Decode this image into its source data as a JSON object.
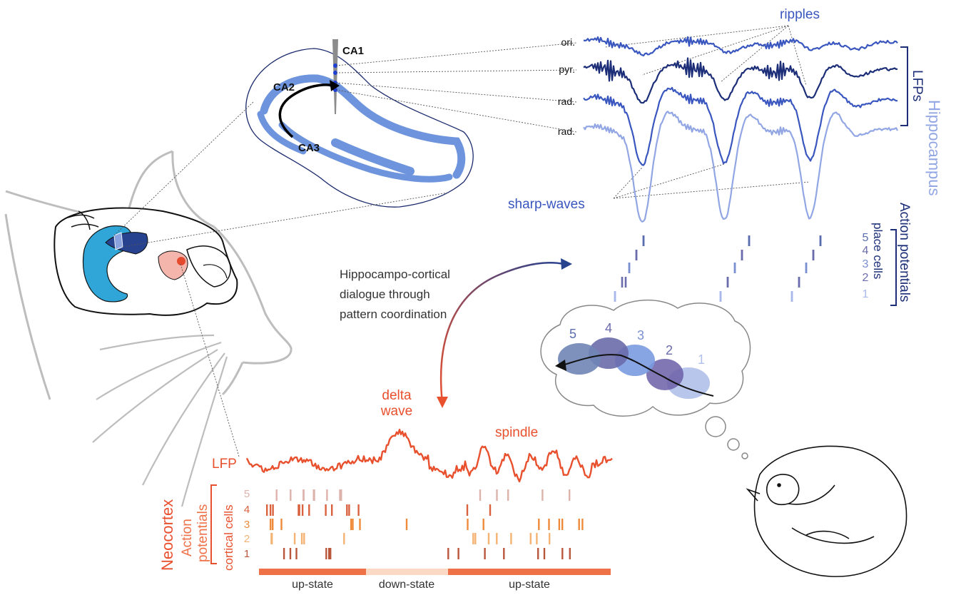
{
  "hippocampus_panel": {
    "region_labels": {
      "ca1": "CA1",
      "ca2": "CA2",
      "ca3": "CA3"
    },
    "layer_labels": [
      "ori.",
      "pyr.",
      "rad.",
      "rad."
    ],
    "ripples_label": "ripples",
    "sharp_waves_label": "sharp-waves",
    "lfps_label": "LFPs",
    "hippocampus_label": "Hippocampus",
    "action_potentials_label": "Action potentials",
    "place_cells_label": "place cells",
    "cell_numbers": [
      "5",
      "4",
      "3",
      "2",
      "1"
    ],
    "colors": {
      "hippo_fill": "#6d94dc",
      "hippo_dark": "#1c2e78",
      "hippo_light": "#92a6e4",
      "spike": "#6b6cab"
    }
  },
  "dialogue_label": [
    "Hippocampo-cortical",
    "dialogue through",
    "pattern coordination"
  ],
  "dream_bubble": {
    "place_numbers": [
      "5",
      "4",
      "3",
      "2",
      "1"
    ]
  },
  "neocortex_panel": {
    "delta_wave_label": [
      "delta",
      "wave"
    ],
    "spindle_label": "spindle",
    "lfp_label": "LFP",
    "neocortex_label": "Neocortex",
    "action_potentials_label": [
      "Action",
      "potentials"
    ],
    "cortical_cells_label": "cortical cells",
    "cell_numbers": [
      "5",
      "4",
      "3",
      "2",
      "1"
    ],
    "states": [
      "up-state",
      "down-state",
      "up-state"
    ],
    "colors": {
      "cortex": "#e8502e",
      "up_state": "#ee7148",
      "down_state": "#fbd9c4"
    }
  }
}
